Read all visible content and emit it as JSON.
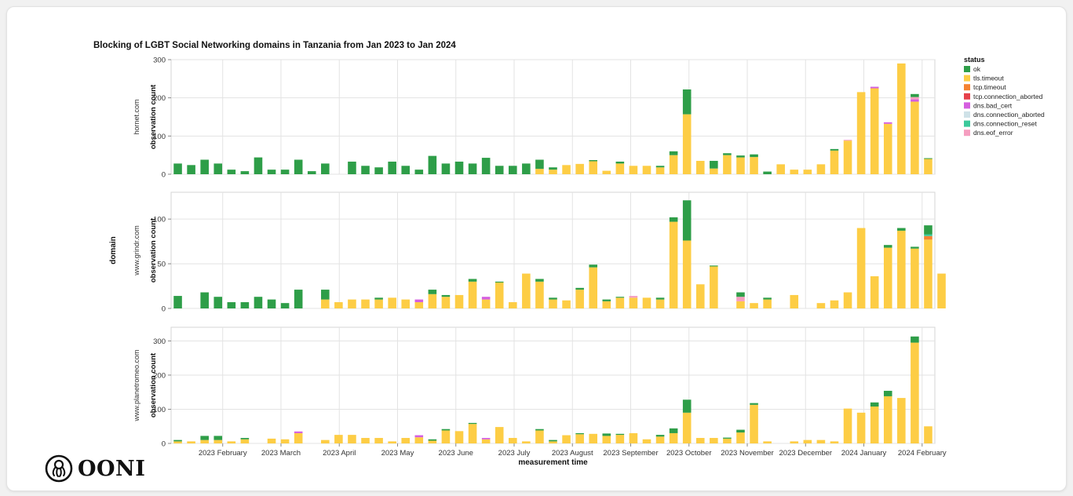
{
  "brand": {
    "logo_text": "OONI"
  },
  "chart_data": {
    "type": "bar",
    "stacked": true,
    "title": "Blocking of LGBT Social Networking domains in Tanzania from Jan 2023 to Jan 2024",
    "xlabel": "measurement time",
    "ylabel": "observation count",
    "facet_label": "domain",
    "x_ticks": [
      "2023 February",
      "2023 March",
      "2023 April",
      "2023 May",
      "2023 June",
      "2023 July",
      "2023 August",
      "2023 September",
      "2023 October",
      "2023 November",
      "2023 December",
      "2024 January",
      "2024 February"
    ],
    "legend": {
      "title": "status",
      "position": "right",
      "items": [
        {
          "name": "ok",
          "color": "#2e9e48"
        },
        {
          "name": "tls.timeout",
          "color": "#fdcd45"
        },
        {
          "name": "tcp.timeout",
          "color": "#f58231"
        },
        {
          "name": "tcp.connection_aborted",
          "color": "#e6414a"
        },
        {
          "name": "dns.bad_cert",
          "color": "#d55fe0"
        },
        {
          "name": "dns.connection_aborted",
          "color": "#cfe2e8"
        },
        {
          "name": "dns.connection_reset",
          "color": "#3cc99b"
        },
        {
          "name": "dns.eof_error",
          "color": "#f59ec0"
        }
      ]
    },
    "series_order": [
      "tls.timeout",
      "tcp.timeout",
      "tcp.connection_aborted",
      "dns.bad_cert",
      "dns.connection_aborted",
      "dns.connection_reset",
      "dns.eof_error",
      "ok"
    ],
    "facets": [
      {
        "domain": "hornet.com",
        "ylim": [
          0,
          300
        ],
        "yticks": [
          0,
          100,
          200,
          300
        ],
        "tick_labels": [
          "0",
          "100",
          "200",
          "300"
        ],
        "bars": [
          {
            "ok": 28
          },
          {
            "ok": 24
          },
          {
            "ok": 38
          },
          {
            "ok": 28
          },
          {
            "ok": 12
          },
          {
            "ok": 8
          },
          {
            "ok": 44
          },
          {
            "ok": 12
          },
          {
            "ok": 12
          },
          {
            "ok": 38
          },
          {
            "ok": 8
          },
          {
            "ok": 28
          },
          {},
          {
            "ok": 33
          },
          {
            "ok": 22
          },
          {
            "ok": 18
          },
          {
            "ok": 33
          },
          {
            "ok": 22
          },
          {
            "ok": 12
          },
          {
            "ok": 48
          },
          {
            "ok": 28
          },
          {
            "ok": 33
          },
          {
            "ok": 28
          },
          {
            "ok": 43
          },
          {
            "ok": 22
          },
          {
            "ok": 22
          },
          {
            "ok": 28
          },
          {
            "tls.timeout": 14,
            "ok": 24
          },
          {
            "tls.timeout": 12,
            "ok": 6
          },
          {
            "tls.timeout": 24
          },
          {
            "tls.timeout": 27
          },
          {
            "tls.timeout": 34,
            "ok": 3
          },
          {
            "tls.timeout": 9
          },
          {
            "tls.timeout": 28,
            "ok": 5
          },
          {
            "tls.timeout": 22
          },
          {
            "tls.timeout": 22
          },
          {
            "tls.timeout": 18,
            "ok": 4
          },
          {
            "tls.timeout": 50,
            "ok": 10
          },
          {
            "tls.timeout": 157,
            "ok": 65
          },
          {
            "tls.timeout": 35
          },
          {
            "tls.timeout": 15,
            "ok": 20
          },
          {
            "tls.timeout": 50,
            "ok": 5
          },
          {
            "tls.timeout": 44,
            "ok": 5
          },
          {
            "tls.timeout": 45,
            "ok": 7
          },
          {
            "ok": 7
          },
          {
            "tls.timeout": 26
          },
          {
            "tls.timeout": 12
          },
          {
            "tls.timeout": 12
          },
          {
            "tls.timeout": 26
          },
          {
            "tls.timeout": 62,
            "ok": 4
          },
          {
            "tls.timeout": 88,
            "dns.eof_error": 2
          },
          {
            "tls.timeout": 215
          },
          {
            "tls.timeout": 225,
            "dns.bad_cert": 4
          },
          {
            "tls.timeout": 132,
            "dns.bad_cert": 4
          },
          {
            "tls.timeout": 290
          },
          {
            "tls.timeout": 190,
            "dns.eof_error": 6,
            "dns.bad_cert": 6,
            "ok": 8
          },
          {
            "tls.timeout": 40,
            "ok": 2
          }
        ]
      },
      {
        "domain": "www.grindr.com",
        "ylim": [
          0,
          130
        ],
        "yticks": [
          0,
          50,
          100
        ],
        "tick_labels": [
          "0",
          "50",
          "100"
        ],
        "bars": [
          {
            "ok": 14
          },
          {},
          {
            "ok": 18
          },
          {
            "ok": 13
          },
          {
            "ok": 7
          },
          {
            "ok": 7
          },
          {
            "ok": 13
          },
          {
            "ok": 10
          },
          {
            "ok": 6
          },
          {
            "ok": 21
          },
          {},
          {
            "tls.timeout": 10,
            "ok": 11
          },
          {
            "tls.timeout": 7
          },
          {
            "tls.timeout": 10
          },
          {
            "tls.timeout": 10
          },
          {
            "tls.timeout": 10,
            "ok": 2
          },
          {
            "tls.timeout": 12
          },
          {
            "tls.timeout": 10
          },
          {
            "tls.timeout": 7,
            "dns.bad_cert": 3
          },
          {
            "tls.timeout": 16,
            "ok": 5
          },
          {
            "tls.timeout": 13,
            "ok": 2
          },
          {
            "tls.timeout": 15
          },
          {
            "tls.timeout": 30,
            "ok": 3
          },
          {
            "tls.timeout": 10,
            "dns.bad_cert": 3
          },
          {
            "tls.timeout": 29,
            "ok": 1
          },
          {
            "tls.timeout": 7
          },
          {
            "tls.timeout": 39
          },
          {
            "tls.timeout": 30,
            "ok": 3
          },
          {
            "tls.timeout": 10,
            "ok": 2
          },
          {
            "tls.timeout": 9
          },
          {
            "tls.timeout": 21,
            "ok": 2
          },
          {
            "tls.timeout": 46,
            "ok": 3
          },
          {
            "tls.timeout": 8,
            "ok": 2
          },
          {
            "tls.timeout": 12,
            "ok": 1
          },
          {
            "tls.timeout": 12,
            "dns.eof_error": 2
          },
          {
            "tls.timeout": 12
          },
          {
            "tls.timeout": 10,
            "ok": 2
          },
          {
            "tls.timeout": 97,
            "ok": 5
          },
          {
            "tls.timeout": 76,
            "ok": 45
          },
          {
            "tls.timeout": 27
          },
          {
            "tls.timeout": 47,
            "ok": 1
          },
          {},
          {
            "tls.timeout": 8,
            "dns.eof_error": 5,
            "ok": 5
          },
          {
            "tls.timeout": 6
          },
          {
            "tls.timeout": 10,
            "ok": 2
          },
          {},
          {
            "tls.timeout": 15
          },
          {},
          {
            "tls.timeout": 6
          },
          {
            "tls.timeout": 9
          },
          {
            "tls.timeout": 18
          },
          {
            "tls.timeout": 90
          },
          {
            "tls.timeout": 36
          },
          {
            "tls.timeout": 68,
            "ok": 3
          },
          {
            "tls.timeout": 87,
            "ok": 3
          },
          {
            "tls.timeout": 67,
            "ok": 2
          },
          {
            "tls.timeout": 77,
            "tcp.timeout": 4,
            "dns.connection_reset": 2,
            "ok": 10
          },
          {
            "tls.timeout": 39
          }
        ]
      },
      {
        "domain": "www.planetromeo.com",
        "ylim": [
          0,
          340
        ],
        "yticks": [
          0,
          100,
          200,
          300
        ],
        "tick_labels": [
          "0",
          "100",
          "200",
          "300"
        ],
        "bars": [
          {
            "tls.timeout": 6,
            "ok": 4
          },
          {
            "tls.timeout": 6
          },
          {
            "tls.timeout": 10,
            "ok": 12
          },
          {
            "tls.timeout": 10,
            "ok": 12
          },
          {
            "tls.timeout": 6
          },
          {
            "tls.timeout": 12,
            "ok": 4
          },
          {},
          {
            "tls.timeout": 14
          },
          {
            "tls.timeout": 12
          },
          {
            "tls.timeout": 30,
            "dns.bad_cert": 5
          },
          {},
          {
            "tls.timeout": 10
          },
          {
            "tls.timeout": 25
          },
          {
            "tls.timeout": 25
          },
          {
            "tls.timeout": 16
          },
          {
            "tls.timeout": 16
          },
          {
            "tls.timeout": 6
          },
          {
            "tls.timeout": 16
          },
          {
            "tls.timeout": 18,
            "dns.bad_cert": 6
          },
          {
            "tls.timeout": 8,
            "ok": 4
          },
          {
            "tls.timeout": 38,
            "ok": 4
          },
          {
            "tls.timeout": 36
          },
          {
            "tls.timeout": 57,
            "ok": 3
          },
          {
            "tls.timeout": 12,
            "dns.bad_cert": 4
          },
          {
            "tls.timeout": 48
          },
          {
            "tls.timeout": 16
          },
          {
            "tls.timeout": 6
          },
          {
            "tls.timeout": 38,
            "ok": 4
          },
          {
            "tls.timeout": 6,
            "ok": 4
          },
          {
            "tls.timeout": 24
          },
          {
            "tls.timeout": 27,
            "ok": 3
          },
          {
            "tls.timeout": 28
          },
          {
            "tls.timeout": 22,
            "ok": 7
          },
          {
            "tls.timeout": 25,
            "ok": 3
          },
          {
            "tls.timeout": 30
          },
          {
            "tls.timeout": 12
          },
          {
            "tls.timeout": 20,
            "ok": 5
          },
          {
            "tls.timeout": 30,
            "ok": 14
          },
          {
            "tls.timeout": 90,
            "ok": 38
          },
          {
            "tls.timeout": 16
          },
          {
            "tls.timeout": 16
          },
          {
            "tls.timeout": 14,
            "ok": 3
          },
          {
            "tls.timeout": 32,
            "ok": 8
          },
          {
            "tls.timeout": 113,
            "ok": 5
          },
          {
            "tls.timeout": 6
          },
          {},
          {
            "tls.timeout": 6
          },
          {
            "tls.timeout": 10
          },
          {
            "tls.timeout": 10
          },
          {
            "tls.timeout": 6
          },
          {
            "tls.timeout": 102
          },
          {
            "tls.timeout": 90
          },
          {
            "tls.timeout": 108,
            "ok": 12
          },
          {
            "tls.timeout": 138,
            "ok": 16
          },
          {
            "tls.timeout": 133
          },
          {
            "tls.timeout": 295,
            "ok": 18
          },
          {
            "tls.timeout": 50
          }
        ]
      }
    ]
  }
}
